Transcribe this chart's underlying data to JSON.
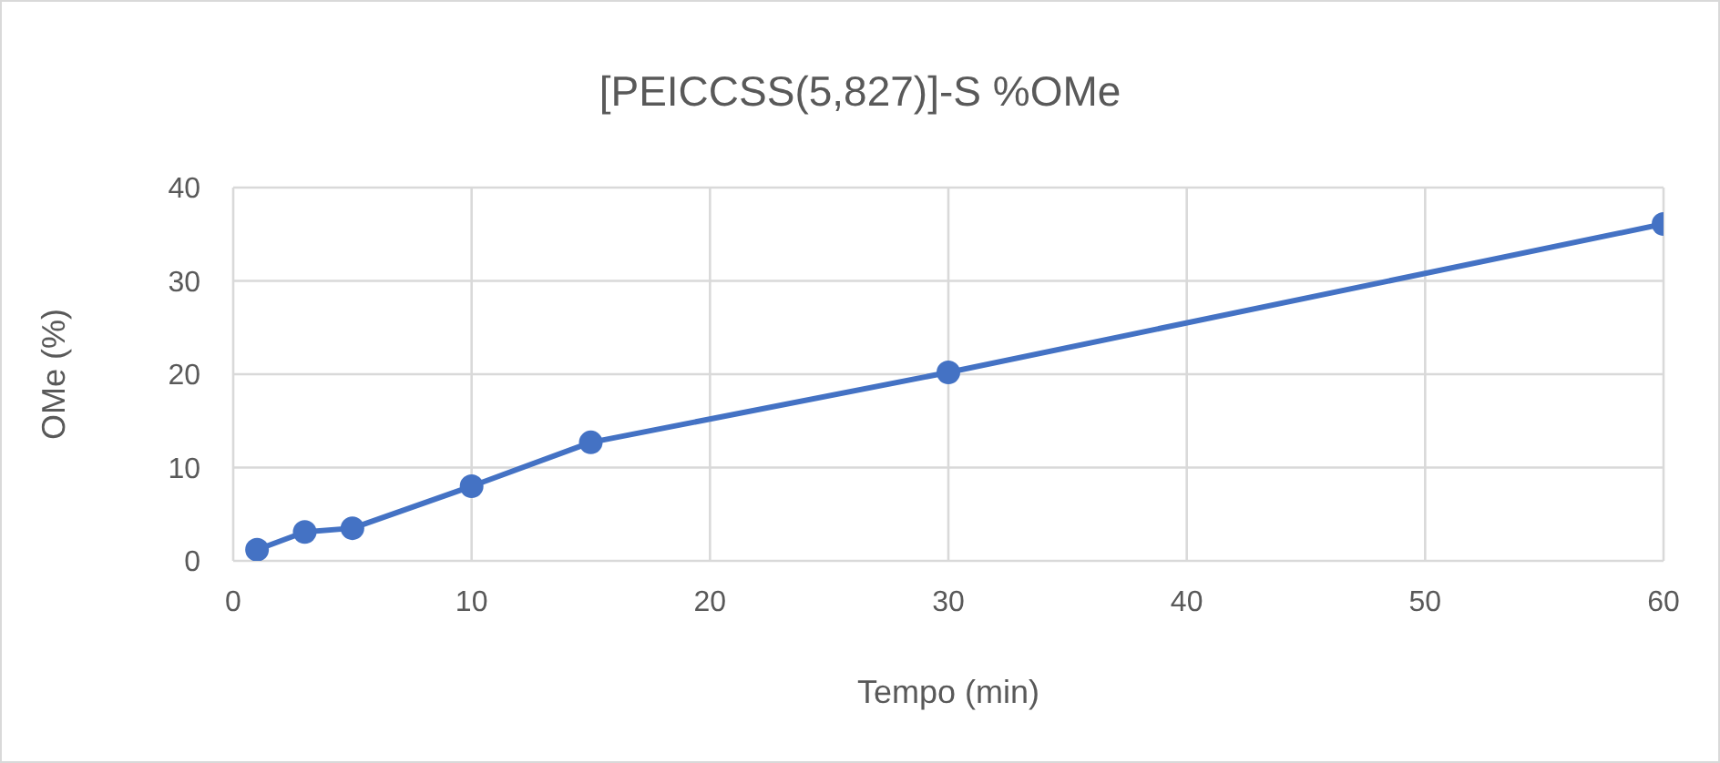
{
  "chart_data": {
    "type": "line",
    "title": "[PEICCSS(5,827)]-S %OMe",
    "xlabel": "Tempo (min)",
    "ylabel": "OMe (%)",
    "x": [
      1,
      3,
      5,
      10,
      15,
      30,
      60
    ],
    "series": [
      {
        "color": "#4472c4",
        "values": [
          1.2,
          3.1,
          3.5,
          8.0,
          12.7,
          20.2,
          36.1
        ]
      }
    ],
    "xlim": [
      0,
      60
    ],
    "xticks": [
      0,
      10,
      20,
      30,
      40,
      50,
      60
    ],
    "ylim": [
      0,
      40
    ],
    "yticks": [
      0,
      10,
      20,
      30,
      40
    ],
    "grid": true,
    "legend": false,
    "marker": "circle",
    "line_style": "solid"
  }
}
